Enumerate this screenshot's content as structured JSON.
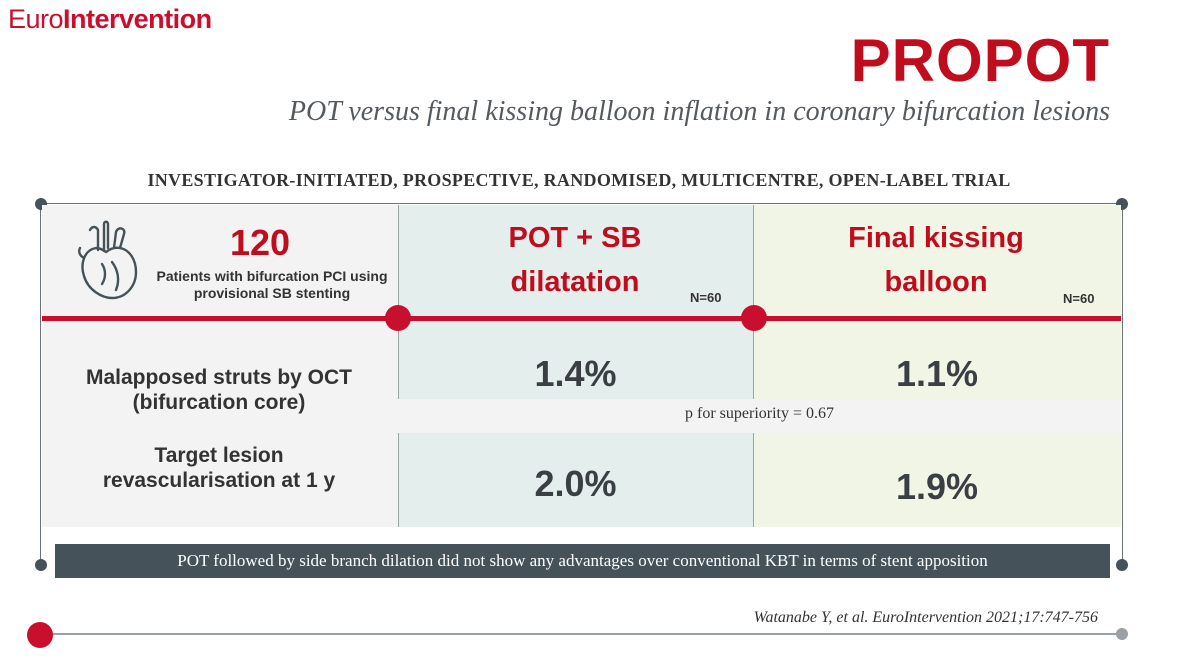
{
  "logo": {
    "part1": "Euro",
    "part2": "Intervention"
  },
  "title": "PROPOT",
  "subtitle": "POT versus final kissing balloon inflation in coronary bifurcation lesions",
  "trial_type": "INVESTIGATOR-INITIATED, PROSPECTIVE, RANDOMISED, MULTICENTRE, OPEN-LABEL TRIAL",
  "population": {
    "count": "120",
    "description": "Patients with bifurcation PCI using provisional SB stenting",
    "icon": "heart-icon"
  },
  "arms": [
    {
      "name_line1": "POT + SB",
      "name_line2": "dilatation",
      "n": "N=60"
    },
    {
      "name_line1": "Final kissing",
      "name_line2": "balloon",
      "n": "N=60"
    }
  ],
  "outcomes": [
    {
      "label_line1": "Malapposed struts by OCT",
      "label_line2": "(bifurcation core)",
      "arm_a": "1.4%",
      "arm_b": "1.1%"
    },
    {
      "label_line1": "Target lesion",
      "label_line2": "revascularisation at 1 y",
      "arm_a": "2.0%",
      "arm_b": "1.9%"
    }
  ],
  "p_value": "p for superiority = 0.67",
  "conclusion": "POT followed by side branch dilation did not show any advantages over conventional KBT in terms of stent apposition",
  "citation": "Watanabe Y, et al. EuroIntervention 2021;17:747-756",
  "colors": {
    "accent_red": "#c8102e",
    "dark_slate": "#45525a",
    "mid_panel": "#e4eeec",
    "right_panel": "#f1f5e6"
  }
}
